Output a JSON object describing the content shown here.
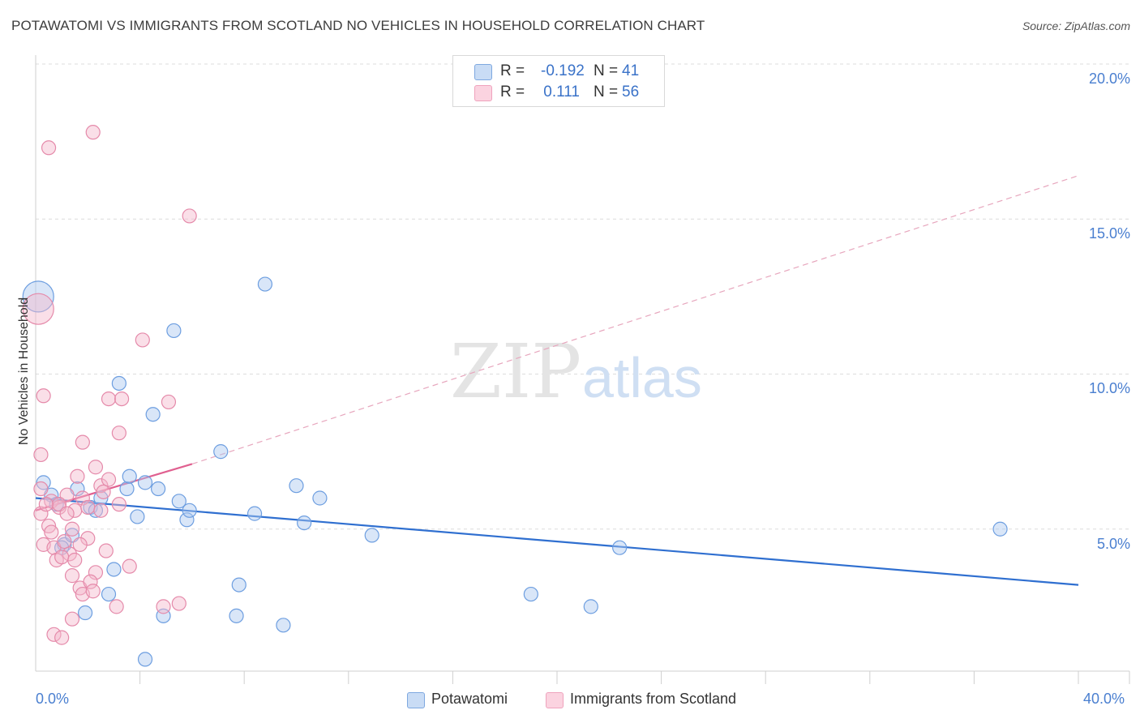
{
  "title": "POTAWATOMI VS IMMIGRANTS FROM SCOTLAND NO VEHICLES IN HOUSEHOLD CORRELATION CHART",
  "source": "Source: ZipAtlas.com",
  "watermark": {
    "zip": "ZIP",
    "atlas": "atlas"
  },
  "stats": [
    {
      "r_label": "R =",
      "r_value": "-0.192",
      "n_label": "N =",
      "n_value": "41",
      "color": "#aac8f0"
    },
    {
      "r_label": "R =",
      "r_value": "0.111",
      "n_label": "N =",
      "n_value": "56",
      "color": "#f5b9cc"
    }
  ],
  "chart_data": {
    "type": "scatter",
    "title": "POTAWATOMI VS IMMIGRANTS FROM SCOTLAND NO VEHICLES IN HOUSEHOLD CORRELATION CHART",
    "xlabel": "",
    "ylabel": "No Vehicles in Household",
    "xlim": [
      0,
      40
    ],
    "ylim": [
      0,
      21
    ],
    "x_tick_labels": [
      {
        "value": 0,
        "label": "0.0%"
      },
      {
        "value": 40,
        "label": "40.0%"
      }
    ],
    "y_tick_labels": [
      {
        "value": 5,
        "label": "5.0%"
      },
      {
        "value": 10,
        "label": "10.0%"
      },
      {
        "value": 15,
        "label": "15.0%"
      },
      {
        "value": 20,
        "label": "20.0%"
      }
    ],
    "x_minor_ticks": [
      4,
      8,
      12,
      16,
      20,
      24,
      28,
      32,
      36,
      40
    ],
    "grid": true,
    "series": [
      {
        "name": "Potawatomi",
        "color": "#aac8f0",
        "stroke": "#6d9ee0",
        "trend": {
          "x": [
            0,
            40
          ],
          "y": [
            6.0,
            3.2
          ],
          "color": "#2f6fd0",
          "style": "solid"
        },
        "points": [
          {
            "x": 0.1,
            "y": 12.5,
            "big": true
          },
          {
            "x": 0.3,
            "y": 6.5
          },
          {
            "x": 0.6,
            "y": 6.1
          },
          {
            "x": 0.8,
            "y": 5.8
          },
          {
            "x": 1.1,
            "y": 4.5
          },
          {
            "x": 1.4,
            "y": 4.8
          },
          {
            "x": 1.6,
            "y": 6.3
          },
          {
            "x": 2.1,
            "y": 5.7
          },
          {
            "x": 2.3,
            "y": 5.6
          },
          {
            "x": 2.5,
            "y": 6.0
          },
          {
            "x": 1.9,
            "y": 2.3
          },
          {
            "x": 2.8,
            "y": 2.9
          },
          {
            "x": 3.0,
            "y": 3.7
          },
          {
            "x": 3.2,
            "y": 9.7
          },
          {
            "x": 3.5,
            "y": 6.3
          },
          {
            "x": 3.6,
            "y": 6.7
          },
          {
            "x": 3.9,
            "y": 5.4
          },
          {
            "x": 4.2,
            "y": 6.5
          },
          {
            "x": 4.5,
            "y": 8.7
          },
          {
            "x": 4.7,
            "y": 6.3
          },
          {
            "x": 4.9,
            "y": 2.2
          },
          {
            "x": 4.2,
            "y": 0.8
          },
          {
            "x": 5.3,
            "y": 11.4
          },
          {
            "x": 5.5,
            "y": 5.9
          },
          {
            "x": 5.8,
            "y": 5.3
          },
          {
            "x": 5.9,
            "y": 5.6
          },
          {
            "x": 7.1,
            "y": 7.5
          },
          {
            "x": 7.7,
            "y": 2.2
          },
          {
            "x": 7.8,
            "y": 3.2
          },
          {
            "x": 8.4,
            "y": 5.5
          },
          {
            "x": 8.8,
            "y": 12.9
          },
          {
            "x": 9.5,
            "y": 1.9
          },
          {
            "x": 10.0,
            "y": 6.4
          },
          {
            "x": 10.3,
            "y": 5.2
          },
          {
            "x": 10.9,
            "y": 6.0
          },
          {
            "x": 12.9,
            "y": 4.8
          },
          {
            "x": 19.0,
            "y": 2.9
          },
          {
            "x": 21.3,
            "y": 2.5
          },
          {
            "x": 22.4,
            "y": 4.4
          },
          {
            "x": 37.0,
            "y": 5.0
          },
          {
            "x": 1.0,
            "y": 4.4
          }
        ]
      },
      {
        "name": "Immigrants from Scotland",
        "color": "#f5b9cc",
        "stroke": "#e58aaa",
        "trend": {
          "x": [
            0,
            6.0
          ],
          "y": [
            5.6,
            7.1
          ],
          "color": "#e06090",
          "style": "solid",
          "extension": {
            "x": [
              6.0,
              40
            ],
            "y": [
              7.1,
              16.4
            ],
            "style": "dashed"
          }
        },
        "points": [
          {
            "x": 0.1,
            "y": 12.1,
            "big": true
          },
          {
            "x": 0.5,
            "y": 17.3
          },
          {
            "x": 2.2,
            "y": 17.8
          },
          {
            "x": 5.9,
            "y": 15.1
          },
          {
            "x": 4.1,
            "y": 11.1
          },
          {
            "x": 0.3,
            "y": 9.3
          },
          {
            "x": 2.8,
            "y": 9.2
          },
          {
            "x": 3.3,
            "y": 9.2
          },
          {
            "x": 5.1,
            "y": 9.1
          },
          {
            "x": 0.2,
            "y": 7.4
          },
          {
            "x": 1.8,
            "y": 7.8
          },
          {
            "x": 3.2,
            "y": 8.1
          },
          {
            "x": 2.3,
            "y": 7.0
          },
          {
            "x": 1.6,
            "y": 6.7
          },
          {
            "x": 2.5,
            "y": 6.4
          },
          {
            "x": 0.2,
            "y": 6.3
          },
          {
            "x": 0.6,
            "y": 5.9
          },
          {
            "x": 0.9,
            "y": 5.7
          },
          {
            "x": 1.2,
            "y": 6.1
          },
          {
            "x": 1.5,
            "y": 5.6
          },
          {
            "x": 1.8,
            "y": 6.0
          },
          {
            "x": 2.0,
            "y": 5.7
          },
          {
            "x": 2.5,
            "y": 5.6
          },
          {
            "x": 3.2,
            "y": 5.8
          },
          {
            "x": 0.2,
            "y": 5.5
          },
          {
            "x": 0.5,
            "y": 5.1
          },
          {
            "x": 1.4,
            "y": 5.0
          },
          {
            "x": 0.3,
            "y": 4.5
          },
          {
            "x": 0.7,
            "y": 4.4
          },
          {
            "x": 1.1,
            "y": 4.6
          },
          {
            "x": 1.3,
            "y": 4.2
          },
          {
            "x": 2.0,
            "y": 4.7
          },
          {
            "x": 0.8,
            "y": 4.0
          },
          {
            "x": 1.0,
            "y": 4.1
          },
          {
            "x": 1.5,
            "y": 4.0
          },
          {
            "x": 2.7,
            "y": 4.3
          },
          {
            "x": 1.4,
            "y": 3.5
          },
          {
            "x": 2.3,
            "y": 3.6
          },
          {
            "x": 3.6,
            "y": 3.8
          },
          {
            "x": 1.7,
            "y": 3.1
          },
          {
            "x": 2.1,
            "y": 3.3
          },
          {
            "x": 1.8,
            "y": 2.9
          },
          {
            "x": 2.2,
            "y": 3.0
          },
          {
            "x": 3.1,
            "y": 2.5
          },
          {
            "x": 4.9,
            "y": 2.5
          },
          {
            "x": 5.5,
            "y": 2.6
          },
          {
            "x": 1.4,
            "y": 2.1
          },
          {
            "x": 0.7,
            "y": 1.6
          },
          {
            "x": 1.0,
            "y": 1.5
          },
          {
            "x": 0.9,
            "y": 5.8
          },
          {
            "x": 1.2,
            "y": 5.5
          },
          {
            "x": 2.6,
            "y": 6.2
          },
          {
            "x": 0.4,
            "y": 5.8
          },
          {
            "x": 1.7,
            "y": 4.5
          },
          {
            "x": 2.8,
            "y": 6.6
          },
          {
            "x": 0.6,
            "y": 4.9
          }
        ]
      }
    ],
    "legend": [
      "Potawatomi",
      "Immigrants from Scotland"
    ],
    "legend_position": "bottom"
  }
}
